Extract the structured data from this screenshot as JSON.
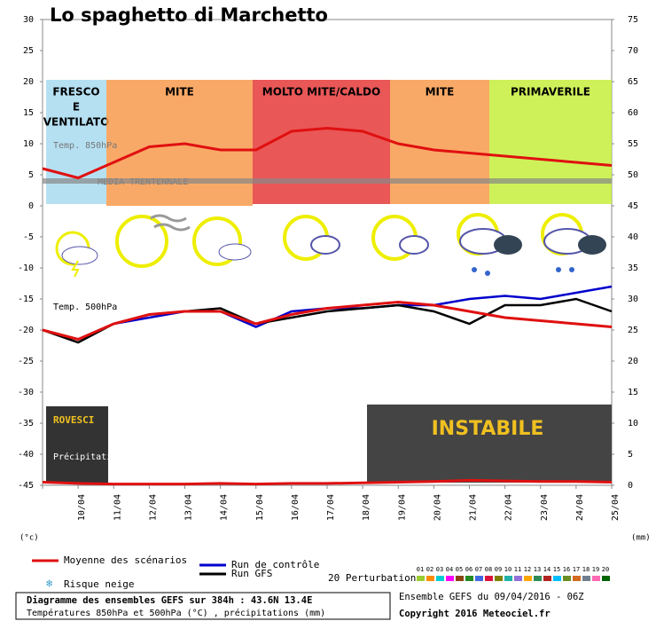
{
  "chart_data": {
    "type": "line",
    "title": "Lo spaghetto di Marchetto",
    "x": [
      null,
      "10/04",
      "11/04",
      "12/04",
      "13/04",
      "14/04",
      "15/04",
      "16/04",
      "17/04",
      "18/04",
      "19/04",
      "20/04",
      "21/04",
      "22/04",
      "23/04",
      "24/04",
      "25/04"
    ],
    "ylim": [
      -45,
      30
    ],
    "yticks": [
      30,
      25,
      20,
      15,
      10,
      5,
      0,
      -5,
      -10,
      -15,
      -20,
      -25,
      -30,
      -35,
      -40,
      -45
    ],
    "y2lim": [
      0,
      75
    ],
    "y2ticks": [
      75,
      70,
      65,
      60,
      55,
      50,
      45,
      40,
      35,
      30,
      25,
      20,
      15,
      10,
      5,
      0
    ],
    "y_unit": "(°c)",
    "y2_unit": "(mm)",
    "annotations": {
      "t850": "Temp. 850hPa",
      "climate": "MEDIA TRENTENNALE",
      "t500": "Temp. 500hPa",
      "precip": "Précipitations",
      "showers": "ROVESCI",
      "unstable": "INSTABILE"
    },
    "climate_mean": 4,
    "bands": [
      {
        "lines": [
          "FRESCO",
          "E",
          "VENTILATO"
        ],
        "color": "#a8daf0"
      },
      {
        "lines": [
          "MITE"
        ],
        "color": "#f89a4c"
      },
      {
        "lines": [
          "MOLTO MITE/CALDO"
        ],
        "color": "#e63a3a"
      },
      {
        "lines": [
          "MITE"
        ],
        "color": "#f89a4c"
      },
      {
        "lines": [
          "PRIMAVERILE"
        ],
        "color": "#c6ee3c"
      }
    ],
    "series": [
      {
        "name": "Moyenne des scénarios",
        "color": "#e01010",
        "values": [
          6,
          4.5,
          7,
          9.5,
          10,
          9,
          9,
          12,
          12.5,
          12,
          10,
          9,
          8.5,
          8,
          7.5,
          7,
          6.5
        ],
        "values_500": [
          -20,
          -21.5,
          -19,
          -17.5,
          -17,
          -17,
          -19,
          -17.5,
          -16.5,
          -16,
          -15.5,
          -16,
          -17,
          -18,
          -18.5,
          -19,
          -19.5
        ],
        "values_precip": [
          0.5,
          0.3,
          0.2,
          0.2,
          0.2,
          0.3,
          0.2,
          0.3,
          0.3,
          0.4,
          0.5,
          0.6,
          0.8,
          0.7,
          0.6,
          0.6,
          0.5
        ]
      },
      {
        "name": "Run de contrôle",
        "color": "#0000cc",
        "values_500": [
          -20,
          -21.5,
          -19,
          -18,
          -17,
          -17,
          -19.5,
          -17,
          -16.5,
          -16.5,
          -16,
          -16,
          -15,
          -14.5,
          -15,
          -14,
          -13
        ]
      },
      {
        "name": "Run GFS",
        "color": "#000000",
        "values_500": [
          -20,
          -22,
          -19,
          -17.5,
          -17,
          -16.5,
          -19,
          -18,
          -17,
          -16.5,
          -16,
          -17,
          -19,
          -16,
          -16,
          -15,
          -17
        ]
      }
    ],
    "snow_label": "Risque neige",
    "perturbations": {
      "label": "20 Perturbations",
      "names": [
        "01",
        "02",
        "03",
        "04",
        "05",
        "06",
        "07",
        "08",
        "09",
        "10",
        "11",
        "12",
        "13",
        "14",
        "15",
        "16",
        "17",
        "18",
        "19",
        "20"
      ],
      "colors": [
        "#9acd32",
        "#ff8c00",
        "#00ced1",
        "#ff00ff",
        "#8b4513",
        "#228b22",
        "#4169e1",
        "#dc143c",
        "#808000",
        "#20b2aa",
        "#9370db",
        "#ffa500",
        "#2e8b57",
        "#b22222",
        "#00bfff",
        "#6b8e23",
        "#d2691e",
        "#708090",
        "#ff69b4",
        "#006400"
      ]
    },
    "footer": {
      "line1": "Diagramme des ensembles GEFS sur 384h : 43.6N 13.4E",
      "line2": "Températures 850hPa et 500hPa (°C) , précipitations (mm)",
      "run": "Ensemble GEFS du 09/04/2016 - 06Z",
      "copyright": "Copyright 2016 Meteociel.fr"
    }
  }
}
